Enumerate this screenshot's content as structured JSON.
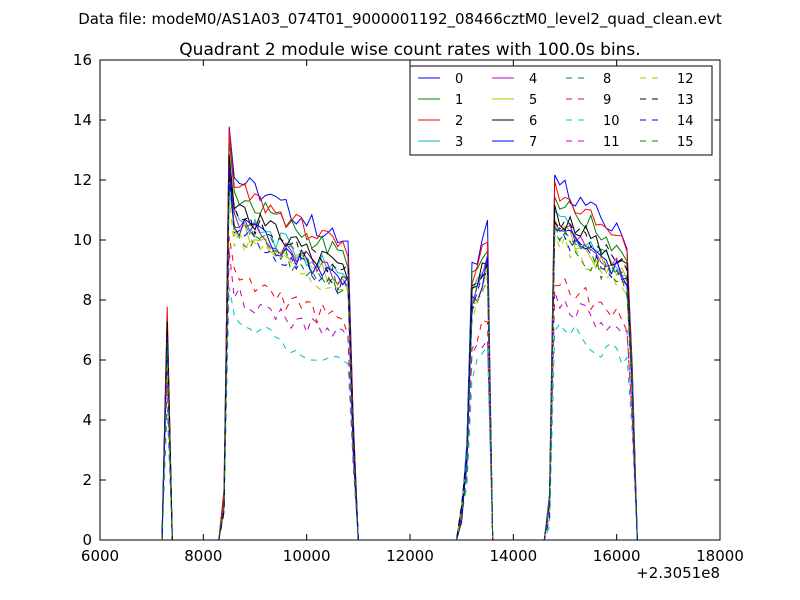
{
  "figure": {
    "suptitle": "Data file: modeM0/AS1A03_074T01_9000001192_08466cztM0_level2_quad_clean.evt"
  },
  "chart_data": {
    "type": "line",
    "title": "Quadrant 2 module wise count rates with 100.0s bins.",
    "xlabel": "",
    "ylabel": "",
    "x_offset_label": "+2.3051e8",
    "xlim": [
      6000,
      18000
    ],
    "ylim": [
      0,
      16
    ],
    "xticks": [
      6000,
      8000,
      10000,
      12000,
      14000,
      16000,
      18000
    ],
    "yticks": [
      0,
      2,
      4,
      6,
      8,
      10,
      12,
      14,
      16
    ],
    "xtick_labels": [
      "6000",
      "8000",
      "10000",
      "12000",
      "14000",
      "16000",
      "18000"
    ],
    "ytick_labels": [
      "0",
      "2",
      "4",
      "6",
      "8",
      "10",
      "12",
      "14",
      "16"
    ],
    "grid": false,
    "legend_position": "top-right",
    "legend_columns": 4,
    "segments": [
      {
        "x": [
          7250,
          7350
        ],
        "peak": 7.0,
        "shape": "spike"
      },
      {
        "x": [
          8350,
          10950
        ],
        "peak": 12.6,
        "plateau_start": 11.0,
        "plateau_end": 8.9,
        "shape": "plateau"
      },
      {
        "x": [
          12950,
          13550
        ],
        "peak": 9.5,
        "shape": "rise"
      },
      {
        "x": [
          14650,
          16350
        ],
        "peak": 11.0,
        "plateau_start": 10.9,
        "plateau_end": 9.0,
        "shape": "plateau"
      }
    ],
    "series": [
      {
        "name": "0",
        "color": "#0000ff",
        "dash": "solid",
        "scale": 1.1
      },
      {
        "name": "1",
        "color": "#008000",
        "dash": "solid",
        "scale": 1.05
      },
      {
        "name": "2",
        "color": "#ff0000",
        "dash": "solid",
        "scale": 1.07
      },
      {
        "name": "3",
        "color": "#00bfbf",
        "dash": "solid",
        "scale": 0.98
      },
      {
        "name": "4",
        "color": "#bf00bf",
        "dash": "solid",
        "scale": 0.97
      },
      {
        "name": "5",
        "color": "#bfbf00",
        "dash": "solid",
        "scale": 0.95
      },
      {
        "name": "6",
        "color": "#000000",
        "dash": "solid",
        "scale": 1.0
      },
      {
        "name": "7",
        "color": "#0000ff",
        "dash": "solid",
        "scale": 0.96
      },
      {
        "name": "8",
        "color": "#008000",
        "dash": "dashed",
        "scale": 0.93
      },
      {
        "name": "9",
        "color": "#ff0000",
        "dash": "dashed",
        "scale": 0.8
      },
      {
        "name": "10",
        "color": "#00bfbf",
        "dash": "dashed",
        "scale": 0.66
      },
      {
        "name": "11",
        "color": "#bf00bf",
        "dash": "dashed",
        "scale": 0.74
      },
      {
        "name": "12",
        "color": "#bfbf00",
        "dash": "dashed",
        "scale": 0.92
      },
      {
        "name": "13",
        "color": "#000000",
        "dash": "dashed",
        "scale": 0.99
      },
      {
        "name": "14",
        "color": "#0000ff",
        "dash": "dashed",
        "scale": 0.94
      },
      {
        "name": "15",
        "color": "#008000",
        "dash": "dashed",
        "scale": 0.95
      }
    ]
  }
}
